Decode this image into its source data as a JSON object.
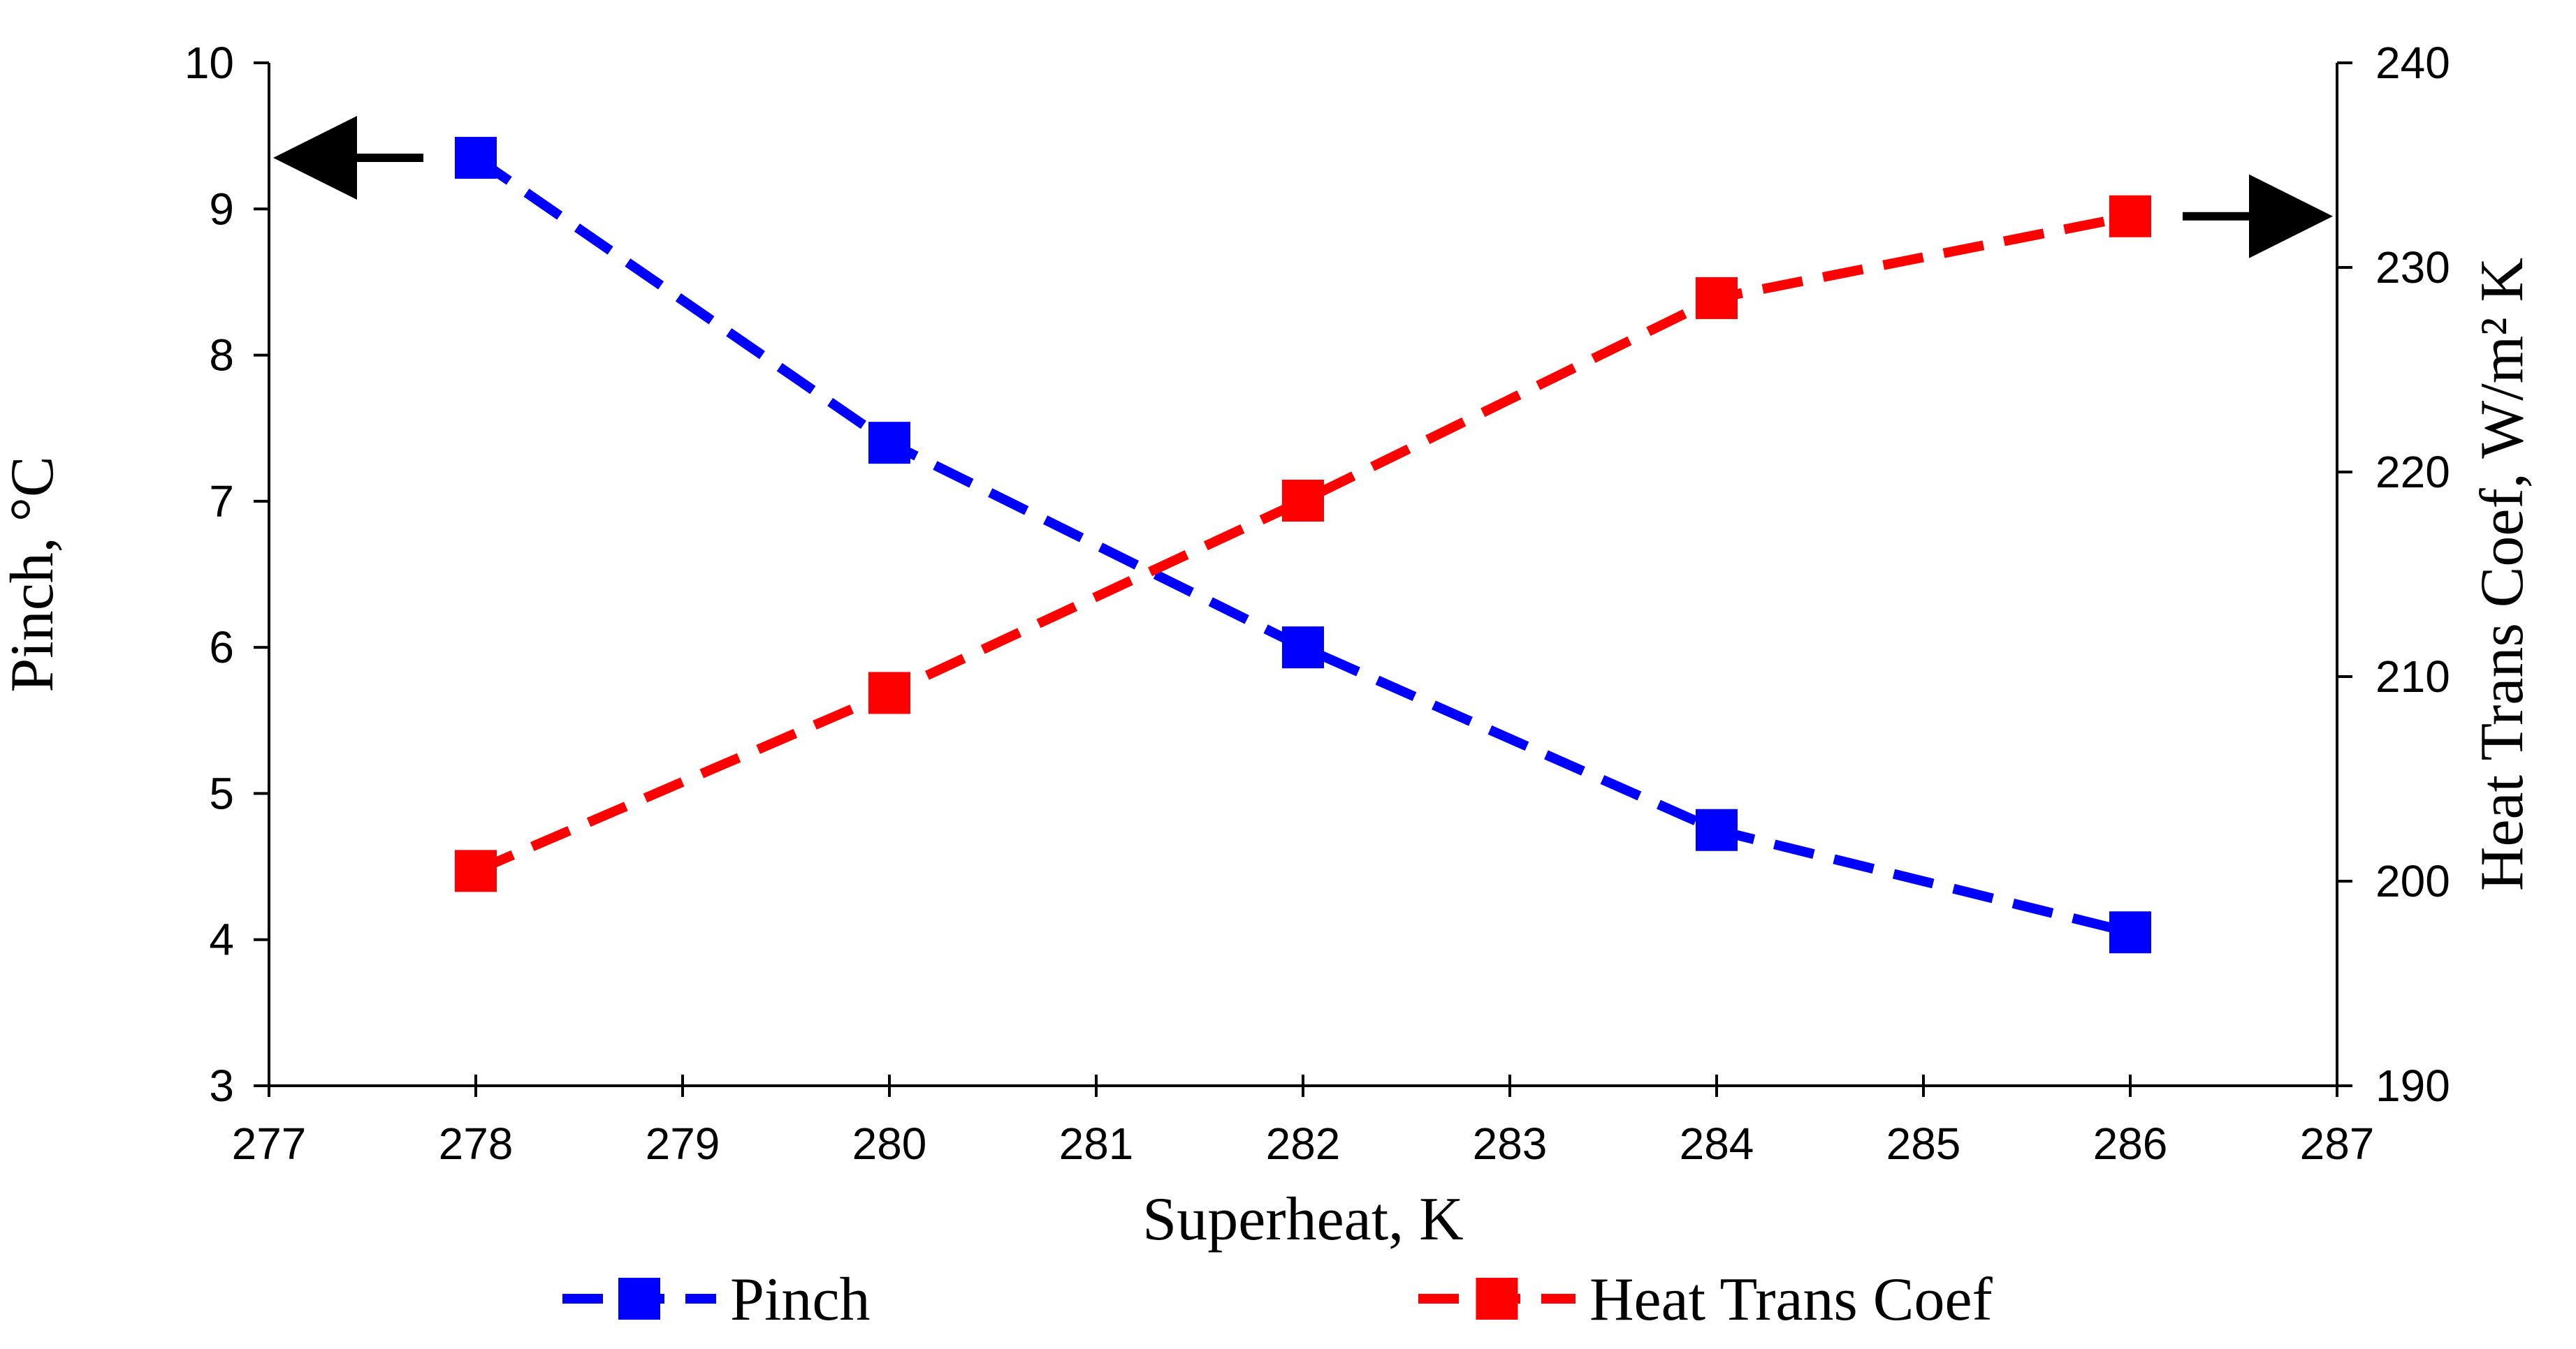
{
  "chart_data": {
    "type": "line",
    "title": "",
    "xlabel": "Superheat, K",
    "ylabel": "Pinch, °C",
    "y2label": "Heat Trans Coef, W/m² K",
    "xlim": [
      277,
      287
    ],
    "ylim": [
      3,
      10
    ],
    "y2lim": [
      190,
      240
    ],
    "x_ticks": [
      277,
      278,
      279,
      280,
      281,
      282,
      283,
      284,
      285,
      286,
      287
    ],
    "y_ticks": [
      3,
      4,
      5,
      6,
      7,
      8,
      9,
      10
    ],
    "y2_ticks": [
      190,
      200,
      210,
      220,
      230,
      240
    ],
    "grid": false,
    "legend_position": "bottom",
    "series": [
      {
        "name": "Pinch",
        "axis": "left",
        "color": "#0000ff",
        "style": "dashed",
        "marker": "square",
        "x": [
          278,
          280,
          282,
          284,
          286
        ],
        "values": [
          9.35,
          7.4,
          6.0,
          4.75,
          4.05
        ]
      },
      {
        "name": "Heat Trans Coef",
        "axis": "right",
        "color": "#ff0000",
        "style": "dashed",
        "marker": "square",
        "x": [
          278,
          280,
          282,
          284,
          286
        ],
        "values": [
          200.5,
          209.2,
          218.6,
          228.5,
          232.5
        ]
      }
    ],
    "annotations": [
      {
        "type": "arrow",
        "direction": "left",
        "series": "Pinch",
        "points_to": "left-axis"
      },
      {
        "type": "arrow",
        "direction": "right",
        "series": "Heat Trans Coef",
        "points_to": "right-axis"
      }
    ]
  }
}
